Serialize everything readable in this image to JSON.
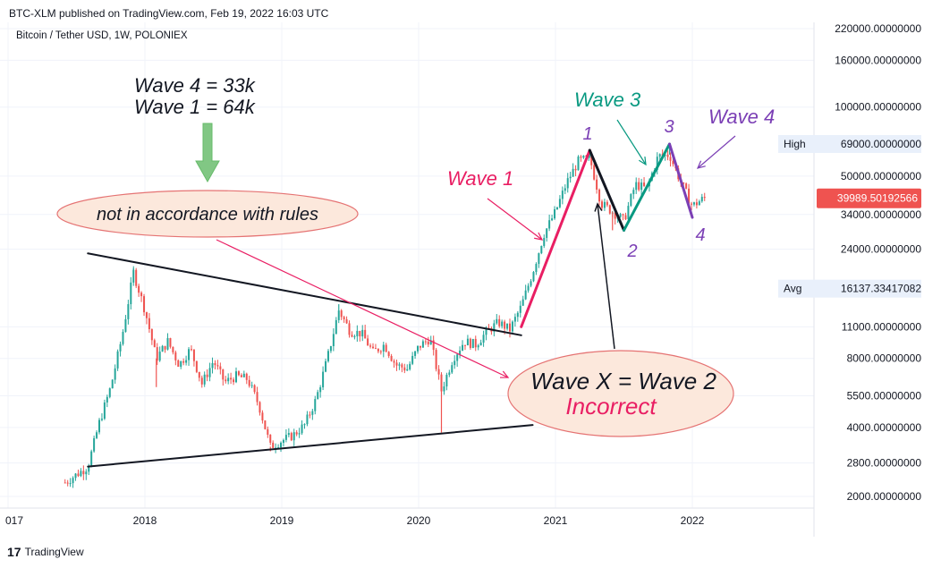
{
  "header": {
    "published": "BTC-XLM published on TradingView.com, Feb 19, 2022 16:03 UTC",
    "symbol": "Bitcoin / Tether USD, 1W, POLONIEX"
  },
  "footer": {
    "brand": "TradingView"
  },
  "chart_data": {
    "type": "candlestick",
    "scale": "log",
    "grid": true,
    "x_ticks": [
      "017",
      "2018",
      "2019",
      "2020",
      "2021",
      "2022"
    ],
    "y_ticks": [
      "220000.00000000",
      "160000.00000000",
      "100000.00000000",
      "69000.00000000",
      "50000.00000000",
      "34000.00000000",
      "24000.00000000",
      "16137.33417082",
      "11000.00000000",
      "8000.00000000",
      "5500.00000000",
      "4000.00000000",
      "2800.00000000",
      "2000.00000000"
    ],
    "markers": [
      {
        "label": "High",
        "value": "69000.00000000"
      },
      {
        "label": "Avg",
        "value": "16137.33417082"
      },
      {
        "label": "",
        "value": "39989.50192566",
        "color": "#ef5350"
      }
    ],
    "price_anchors": [
      [
        "2017-06",
        2300
      ],
      [
        "2017-08",
        2700
      ],
      [
        "2017-09",
        4200
      ],
      [
        "2017-10",
        6000
      ],
      [
        "2017-11",
        10000
      ],
      [
        "2017-12",
        19000
      ],
      [
        "2018-01",
        13000
      ],
      [
        "2018-02",
        8000
      ],
      [
        "2018-03",
        9500
      ],
      [
        "2018-04",
        7500
      ],
      [
        "2018-05",
        8800
      ],
      [
        "2018-06",
        6200
      ],
      [
        "2018-07",
        7800
      ],
      [
        "2018-08",
        6300
      ],
      [
        "2018-09",
        6700
      ],
      [
        "2018-10",
        6500
      ],
      [
        "2018-11",
        5000
      ],
      [
        "2018-12",
        3300
      ],
      [
        "2019-01",
        3500
      ],
      [
        "2019-02",
        3700
      ],
      [
        "2019-03",
        4100
      ],
      [
        "2019-04",
        5300
      ],
      [
        "2019-05",
        8000
      ],
      [
        "2019-06",
        13000
      ],
      [
        "2019-07",
        10500
      ],
      [
        "2019-08",
        10300
      ],
      [
        "2019-09",
        8500
      ],
      [
        "2019-10",
        9200
      ],
      [
        "2019-11",
        7500
      ],
      [
        "2019-12",
        7200
      ],
      [
        "2020-01",
        9000
      ],
      [
        "2020-02",
        9800
      ],
      [
        "2020-03",
        5800
      ],
      [
        "2020-04",
        8000
      ],
      [
        "2020-05",
        9500
      ],
      [
        "2020-06",
        9200
      ],
      [
        "2020-07",
        10500
      ],
      [
        "2020-08",
        11500
      ],
      [
        "2020-09",
        10700
      ],
      [
        "2020-10",
        13500
      ],
      [
        "2020-11",
        19000
      ],
      [
        "2020-12",
        28000
      ],
      [
        "2021-01",
        35000
      ],
      [
        "2021-02",
        47000
      ],
      [
        "2021-03",
        58000
      ],
      [
        "2021-04",
        60000
      ],
      [
        "2021-05",
        38000
      ],
      [
        "2021-06",
        35000
      ],
      [
        "2021-07",
        32000
      ],
      [
        "2021-08",
        46000
      ],
      [
        "2021-09",
        44000
      ],
      [
        "2021-10",
        61000
      ],
      [
        "2021-11",
        62000
      ],
      [
        "2021-12",
        47000
      ],
      [
        "2022-01",
        37000
      ],
      [
        "2022-02",
        40000
      ]
    ],
    "wicks": [
      [
        "2018-02",
        6000
      ],
      [
        "2020-03",
        3800
      ],
      [
        "2019-06",
        13800
      ],
      [
        "2021-04",
        64800
      ],
      [
        "2021-11",
        69000
      ],
      [
        "2021-06",
        29000
      ],
      [
        "2017-12",
        19800
      ],
      [
        "2018-12",
        3150
      ]
    ],
    "trendlines": [
      {
        "name": "triangle-upper",
        "from": [
          "2017-08",
          23000
        ],
        "to": [
          "2020-10",
          10100
        ],
        "color": "#131722"
      },
      {
        "name": "triangle-lower",
        "from": [
          "2017-08",
          2700
        ],
        "to": [
          "2020-11",
          4100
        ],
        "color": "#131722"
      },
      {
        "name": "wave-1",
        "from": [
          "2020-10",
          11000
        ],
        "to": [
          "2021-04",
          64800
        ],
        "color": "#e91e63"
      },
      {
        "name": "wave-2",
        "from": [
          "2021-04",
          64800
        ],
        "to": [
          "2021-07",
          29000
        ],
        "color": "#131722"
      },
      {
        "name": "wave-3",
        "from": [
          "2021-07",
          29000
        ],
        "to": [
          "2021-11",
          69000
        ],
        "color": "#089981"
      },
      {
        "name": "wave-4",
        "from": [
          "2021-11",
          69000
        ],
        "to": [
          "2022-01",
          33000
        ],
        "color": "#7b3fb5"
      }
    ],
    "annotations": {
      "wave_rule_line1": "Wave 4  = 33k",
      "wave_rule_line2": "Wave 1  = 64k",
      "not_in_accordance": "not in accordance with rules",
      "wave1": "Wave 1",
      "wave3": "Wave 3",
      "wave4": "Wave 4",
      "num1": "1",
      "num2": "2",
      "num3": "3",
      "num4": "4",
      "waveX": "Wave X = Wave 2",
      "incorrect": "Incorrect"
    }
  }
}
